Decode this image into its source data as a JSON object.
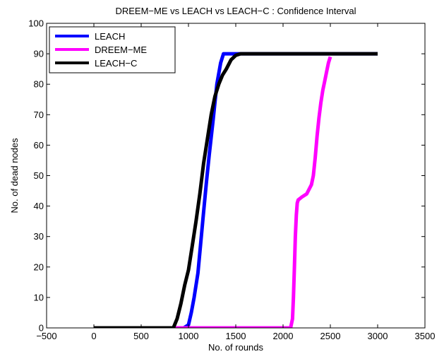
{
  "chart_data": {
    "type": "line",
    "title": "DREEM−ME vs LEACH vs LEACH−C : Confidence Interval",
    "xlabel": "No. of rounds",
    "ylabel": "No. of dead nodes",
    "xlim": [
      -500,
      3500
    ],
    "ylim": [
      0,
      100
    ],
    "xticks": [
      -500,
      0,
      500,
      1000,
      1500,
      2000,
      2500,
      3000,
      3500
    ],
    "yticks": [
      0,
      10,
      20,
      30,
      40,
      50,
      60,
      70,
      80,
      90,
      100
    ],
    "xtick_labels": [
      "−500",
      "0",
      "500",
      "1000",
      "1500",
      "2000",
      "2500",
      "3000",
      "3500"
    ],
    "ytick_labels": [
      "0",
      "10",
      "20",
      "30",
      "40",
      "50",
      "60",
      "70",
      "80",
      "90",
      "100"
    ],
    "grid": false,
    "legend_position": "top-left",
    "series": [
      {
        "name": "LEACH",
        "color": "#0000ff",
        "x": [
          0,
          950,
          1000,
          1030,
          1060,
          1100,
          1130,
          1160,
          1190,
          1220,
          1260,
          1300,
          1340,
          1370,
          1400,
          1500,
          1600,
          1700,
          1800,
          1900,
          2000,
          2100,
          2200,
          2300,
          2400,
          2500,
          2600,
          2700,
          2800,
          2900,
          3000
        ],
        "y": [
          0,
          0,
          1,
          5,
          10,
          18,
          28,
          38,
          48,
          57,
          68,
          80,
          87,
          90,
          90,
          90,
          90,
          90,
          90,
          90,
          90,
          90,
          90,
          90,
          90,
          90,
          90,
          90,
          90,
          90,
          90
        ]
      },
      {
        "name": "DREEM−ME",
        "color": "#ff00ff",
        "x": [
          0,
          500,
          1000,
          1500,
          2000,
          2080,
          2100,
          2110,
          2120,
          2130,
          2140,
          2150,
          2160,
          2180,
          2200,
          2250,
          2300,
          2320,
          2340,
          2360,
          2380,
          2400,
          2420,
          2440,
          2460,
          2480,
          2500
        ],
        "y": [
          0,
          0,
          0,
          0,
          0,
          0,
          3,
          10,
          20,
          30,
          37,
          41,
          42,
          42.5,
          43,
          44,
          47,
          50,
          56,
          63,
          69,
          74,
          78,
          81,
          84,
          87,
          89
        ]
      },
      {
        "name": "LEACH−C",
        "color": "#000000",
        "x": [
          0,
          500,
          840,
          880,
          920,
          960,
          1000,
          1040,
          1080,
          1120,
          1160,
          1200,
          1240,
          1280,
          1320,
          1360,
          1400,
          1450,
          1500,
          1550,
          1600,
          1700,
          1800,
          2000,
          2500,
          3000
        ],
        "y": [
          0,
          0,
          0,
          3,
          8,
          14,
          19,
          27,
          35,
          44,
          54,
          62,
          70,
          76,
          80,
          83,
          85,
          88,
          89.5,
          90,
          90,
          90,
          90,
          90,
          90,
          90
        ]
      }
    ]
  }
}
